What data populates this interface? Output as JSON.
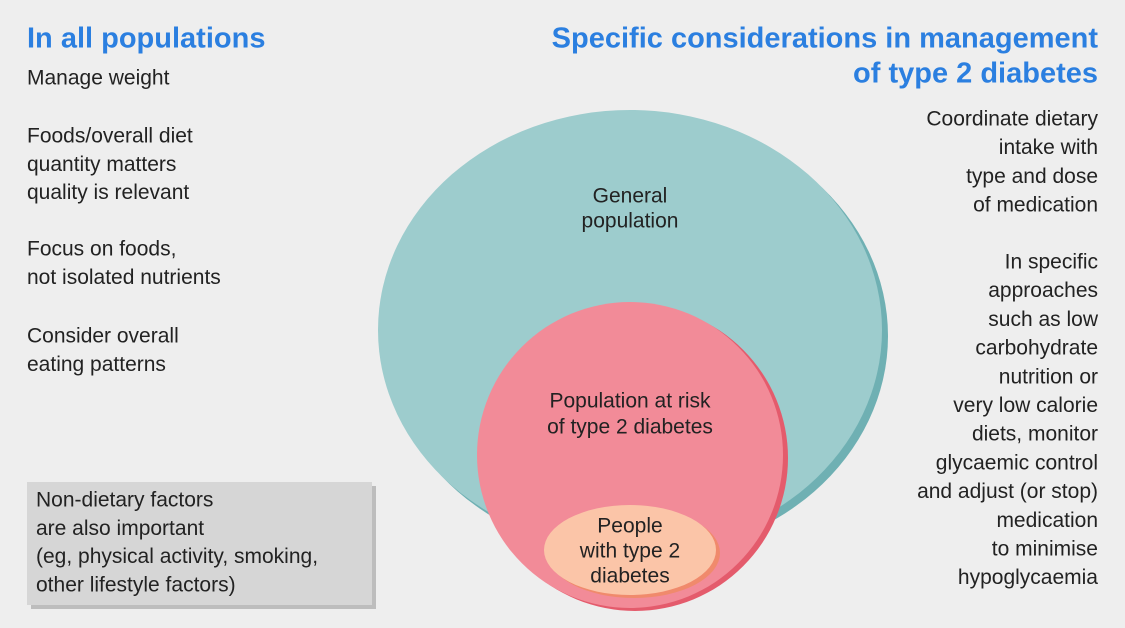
{
  "left": {
    "title": "In all populations",
    "items": [
      {
        "lines": [
          "Manage weight"
        ]
      },
      {
        "lines": [
          "Foods/overall diet",
          "quantity matters",
          "quality is relevant"
        ]
      },
      {
        "lines": [
          "Focus on foods,",
          "not isolated nutrients"
        ]
      },
      {
        "lines": [
          "Consider overall",
          "eating patterns"
        ]
      }
    ]
  },
  "right": {
    "title_lines": [
      "Specific considerations in management",
      "of type 2 diabetes"
    ],
    "items": [
      {
        "lines": [
          "Coordinate dietary",
          "intake with",
          "type and dose",
          "of medication"
        ]
      },
      {
        "lines": [
          "In specific",
          "approaches",
          "such as low",
          "carbohydrate",
          "nutrition or",
          "very low calorie",
          "diets, monitor",
          "glycaemic control",
          "and adjust (or stop)",
          "medication",
          "to minimise",
          "hypoglycaemia"
        ]
      }
    ]
  },
  "diagram": {
    "outer": {
      "lines": [
        "General",
        "population"
      ]
    },
    "middle": {
      "lines": [
        "Population at risk",
        "of type 2 diabetes"
      ]
    },
    "inner": {
      "lines": [
        "People",
        "with type 2",
        "diabetes"
      ]
    }
  },
  "note": {
    "lines": [
      "Non-dietary factors",
      "are also important",
      "(eg, physical activity, smoking,",
      "other lifestyle factors)"
    ]
  }
}
